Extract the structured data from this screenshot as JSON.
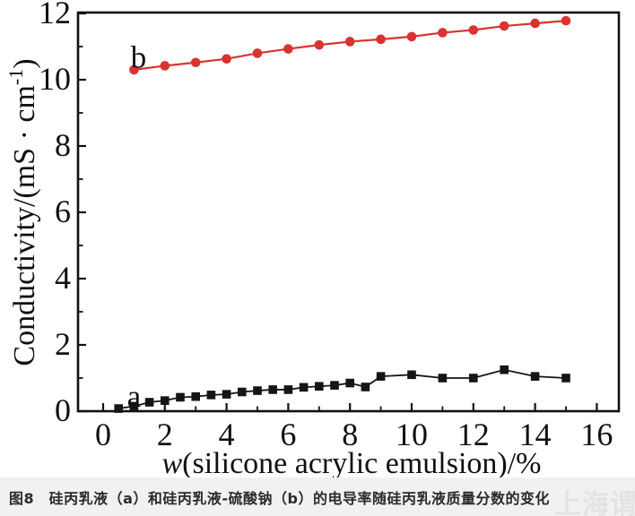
{
  "caption": {
    "text": "图8　硅丙乳液（a）和硅丙乳液-硫酸钠（b）的电导率随硅丙乳液质量分数的变化"
  },
  "watermark": {
    "text": "上海谓青"
  },
  "colors": {
    "series_a": "#151515",
    "series_b": "#d93331",
    "frame": "#111111",
    "caption_bar_bg": "#f1f1f1",
    "watermark": "#e3e3e3"
  },
  "chart_data": {
    "type": "line",
    "title": "",
    "xlabel": "w(silicone acrylic emulsion)/%",
    "xlabel_italic": "w",
    "xlabel_rest": "(silicone acrylic emulsion)/%",
    "ylabel": "Conductivity/(mS·cm⁻¹)",
    "ylabel_pre": "Conductivity/(mS · cm",
    "ylabel_sup": "-1",
    "ylabel_post": ")",
    "xlim": [
      -0.8,
      16.8
    ],
    "ylim": [
      0,
      12
    ],
    "x_ticks_major": [
      0,
      2,
      4,
      6,
      8,
      10,
      12,
      14,
      16
    ],
    "x_ticks_minor": [
      1,
      3,
      5,
      7,
      9,
      11,
      13,
      15
    ],
    "y_ticks_major": [
      0,
      2,
      4,
      6,
      8,
      10,
      12
    ],
    "y_ticks_minor": [
      1,
      3,
      5,
      7,
      9,
      11
    ],
    "grid": false,
    "legend": "inline-labels",
    "series": [
      {
        "name": "a",
        "marker": "square",
        "color": "#151515",
        "label": "a",
        "label_pos": {
          "x": 1.0,
          "y": 0.52
        },
        "x": [
          0.5,
          1,
          1.5,
          2,
          2.5,
          3,
          3.5,
          4,
          4.5,
          5,
          5.5,
          6,
          6.5,
          7,
          7.5,
          8,
          8.5,
          9,
          10,
          11,
          12,
          13,
          14,
          15
        ],
        "y": [
          0.08,
          0.15,
          0.27,
          0.32,
          0.42,
          0.44,
          0.49,
          0.51,
          0.58,
          0.62,
          0.65,
          0.65,
          0.72,
          0.75,
          0.78,
          0.85,
          0.73,
          1.05,
          1.1,
          1.0,
          1.0,
          1.25,
          1.05,
          1.0
        ]
      },
      {
        "name": "b",
        "marker": "circle",
        "color": "#d93331",
        "label": "b",
        "label_pos": {
          "x": 1.15,
          "y": 10.75
        },
        "x": [
          1,
          2,
          3,
          4,
          5,
          6,
          7,
          8,
          9,
          10,
          11,
          12,
          13,
          14,
          15
        ],
        "y": [
          10.3,
          10.42,
          10.52,
          10.63,
          10.8,
          10.93,
          11.05,
          11.15,
          11.22,
          11.3,
          11.42,
          11.5,
          11.62,
          11.7,
          11.78
        ]
      }
    ]
  }
}
